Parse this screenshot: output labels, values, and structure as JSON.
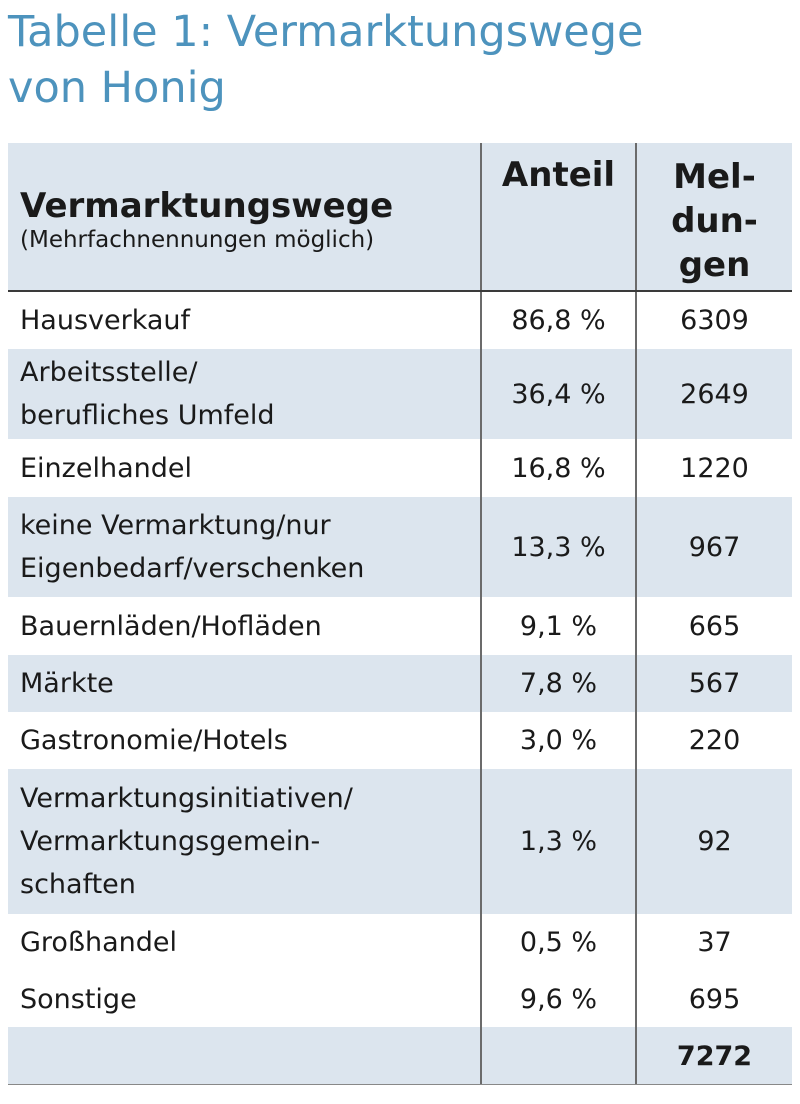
{
  "header": {
    "title": [
      "Tabelle 1: Vermarktungswege",
      "von Honig"
    ]
  },
  "table": {
    "columns": [
      {
        "title": "Vermarktungswege",
        "subtitle": "(Mehrfachnennungen möglich)"
      },
      {
        "title": [
          "Anteil"
        ]
      },
      {
        "title": [
          "Mel-",
          "dun-",
          "gen"
        ]
      }
    ],
    "rows": [
      {
        "label": [
          "Hausverkauf"
        ],
        "share": "86,8 %",
        "count": "6309"
      },
      {
        "label": [
          "Arbeitsstelle/",
          "berufliches Umfeld"
        ],
        "share": "36,4 %",
        "count": "2649"
      },
      {
        "label": [
          "Einzelhandel"
        ],
        "share": "16,8 %",
        "count": "1220"
      },
      {
        "label": [
          "keine Vermarktung/nur",
          "Eigenbedarf/verschenken"
        ],
        "share": "13,3 %",
        "count": "967"
      },
      {
        "label": [
          "Bauernläden/Hofläden"
        ],
        "share": "9,1 %",
        "count": "665"
      },
      {
        "label": [
          "Märkte"
        ],
        "share": "7,8 %",
        "count": "567"
      },
      {
        "label": [
          "Gastronomie/Hotels"
        ],
        "share": "3,0 %",
        "count": "220"
      },
      {
        "label": [
          "Vermarktungsinitiativen/",
          "Vermarktungsgemein-",
          "schaften"
        ],
        "share": "1,3 %",
        "count": "92"
      },
      {
        "label": [
          "Großhandel"
        ],
        "share": "0,5 %",
        "count": "37"
      },
      {
        "label": [
          "Sonstige"
        ],
        "share": "9,6 %",
        "count": "695"
      }
    ],
    "total": "7272"
  }
}
